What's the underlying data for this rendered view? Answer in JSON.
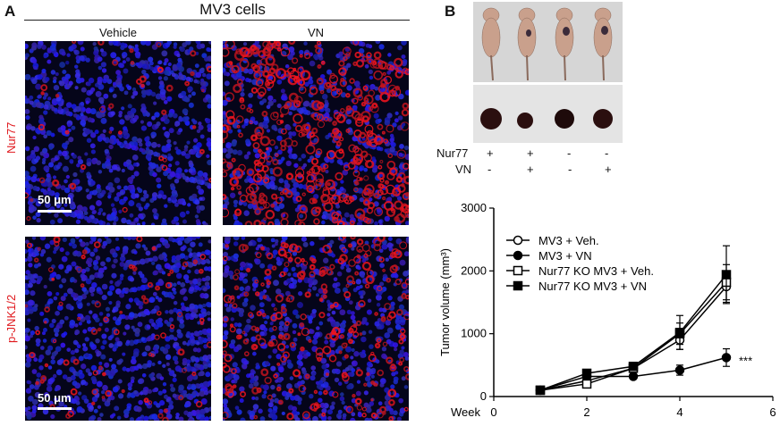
{
  "panel_a": {
    "letter": "A",
    "header": "MV3 cells",
    "columns": [
      "Vehicle",
      "VN"
    ],
    "rows": [
      "Nur77",
      "p-JNK1/2"
    ],
    "scale_bar": "50 μm"
  },
  "panel_b": {
    "letter": "B",
    "genotype_table": {
      "rows": [
        {
          "label": "Nur77",
          "values": [
            "+",
            "+",
            "-",
            "-"
          ]
        },
        {
          "label": "VN",
          "values": [
            "-",
            "+",
            "-",
            "+"
          ]
        }
      ]
    }
  },
  "chart_data": {
    "type": "line",
    "ylabel": "Tumor volume (mm³)",
    "xlabel_prefix": "Week",
    "x": [
      1,
      2,
      3,
      4,
      5
    ],
    "xlim": [
      0,
      6
    ],
    "ylim": [
      0,
      3000
    ],
    "xticks": [
      0,
      2,
      4,
      6
    ],
    "yticks": [
      0,
      1000,
      2000,
      3000
    ],
    "series": [
      {
        "name": "MV3 + Veh.",
        "marker": "open-circle",
        "values": [
          100,
          250,
          450,
          900,
          1750
        ],
        "err": [
          0,
          30,
          50,
          150,
          250
        ]
      },
      {
        "name": "MV3 + VN",
        "marker": "filled-circle",
        "values": [
          100,
          320,
          320,
          420,
          620
        ],
        "err": [
          0,
          30,
          40,
          80,
          140
        ]
      },
      {
        "name": "Nur77 KO MV3 + Veh.",
        "marker": "open-square",
        "values": [
          100,
          200,
          450,
          1000,
          1820
        ],
        "err": [
          0,
          30,
          50,
          170,
          280
        ]
      },
      {
        "name": "Nur77 KO MV3 + VN",
        "marker": "filled-square",
        "values": [
          100,
          370,
          480,
          1020,
          1940
        ],
        "err": [
          0,
          40,
          50,
          270,
          460
        ]
      }
    ],
    "annotation": "***",
    "legend_position": "top-left"
  }
}
